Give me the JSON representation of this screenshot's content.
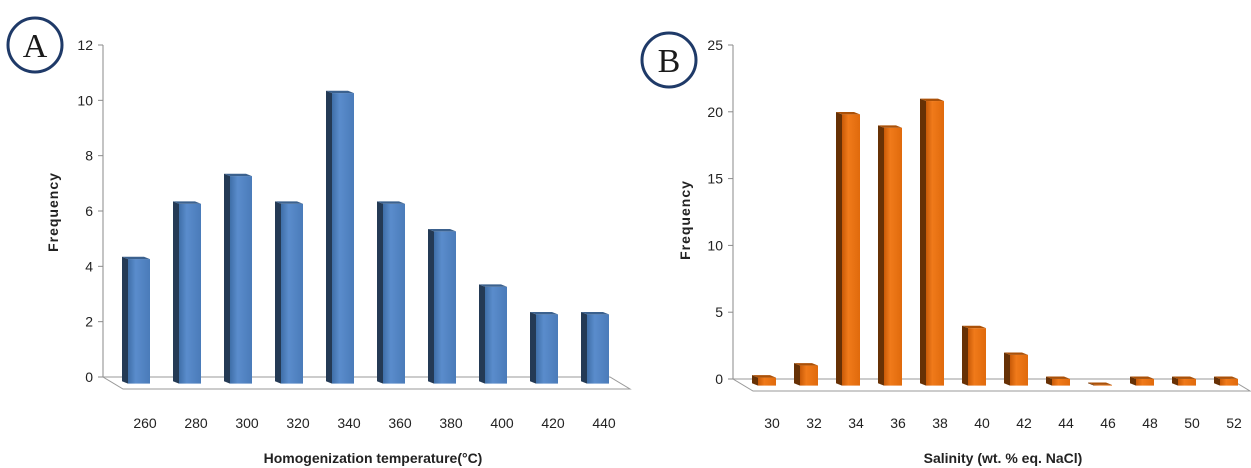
{
  "chart_data": [
    {
      "type": "bar",
      "panel_label": "A",
      "categories": [
        "260",
        "280",
        "300",
        "320",
        "340",
        "360",
        "380",
        "400",
        "420",
        "440"
      ],
      "values": [
        4.5,
        6.5,
        7.5,
        6.5,
        10.5,
        6.5,
        5.5,
        3.5,
        2.5,
        2.5
      ],
      "ylabel": "Frequency",
      "xlabel": "Homogenization temperature(°C)",
      "ylim": [
        0,
        12
      ],
      "yticks": [
        "0",
        "2",
        "4",
        "6",
        "8",
        "10",
        "12"
      ],
      "grid": false,
      "color": "#4f81bd"
    },
    {
      "type": "bar",
      "panel_label": "B",
      "categories": [
        "30",
        "32",
        "34",
        "36",
        "38",
        "40",
        "42",
        "44",
        "46",
        "48",
        "50",
        "52"
      ],
      "values": [
        0.6,
        1.5,
        20.3,
        19.3,
        21.3,
        4.3,
        2.3,
        0.5,
        0.05,
        0.5,
        0.5,
        0.5
      ],
      "ylabel": "Frequency",
      "xlabel": "Salinity  (wt. % eq. NaCl)",
      "ylim": [
        0,
        25
      ],
      "yticks": [
        "0",
        "5",
        "10",
        "15",
        "20",
        "25"
      ],
      "grid": false,
      "color": "#e46c0a"
    }
  ]
}
